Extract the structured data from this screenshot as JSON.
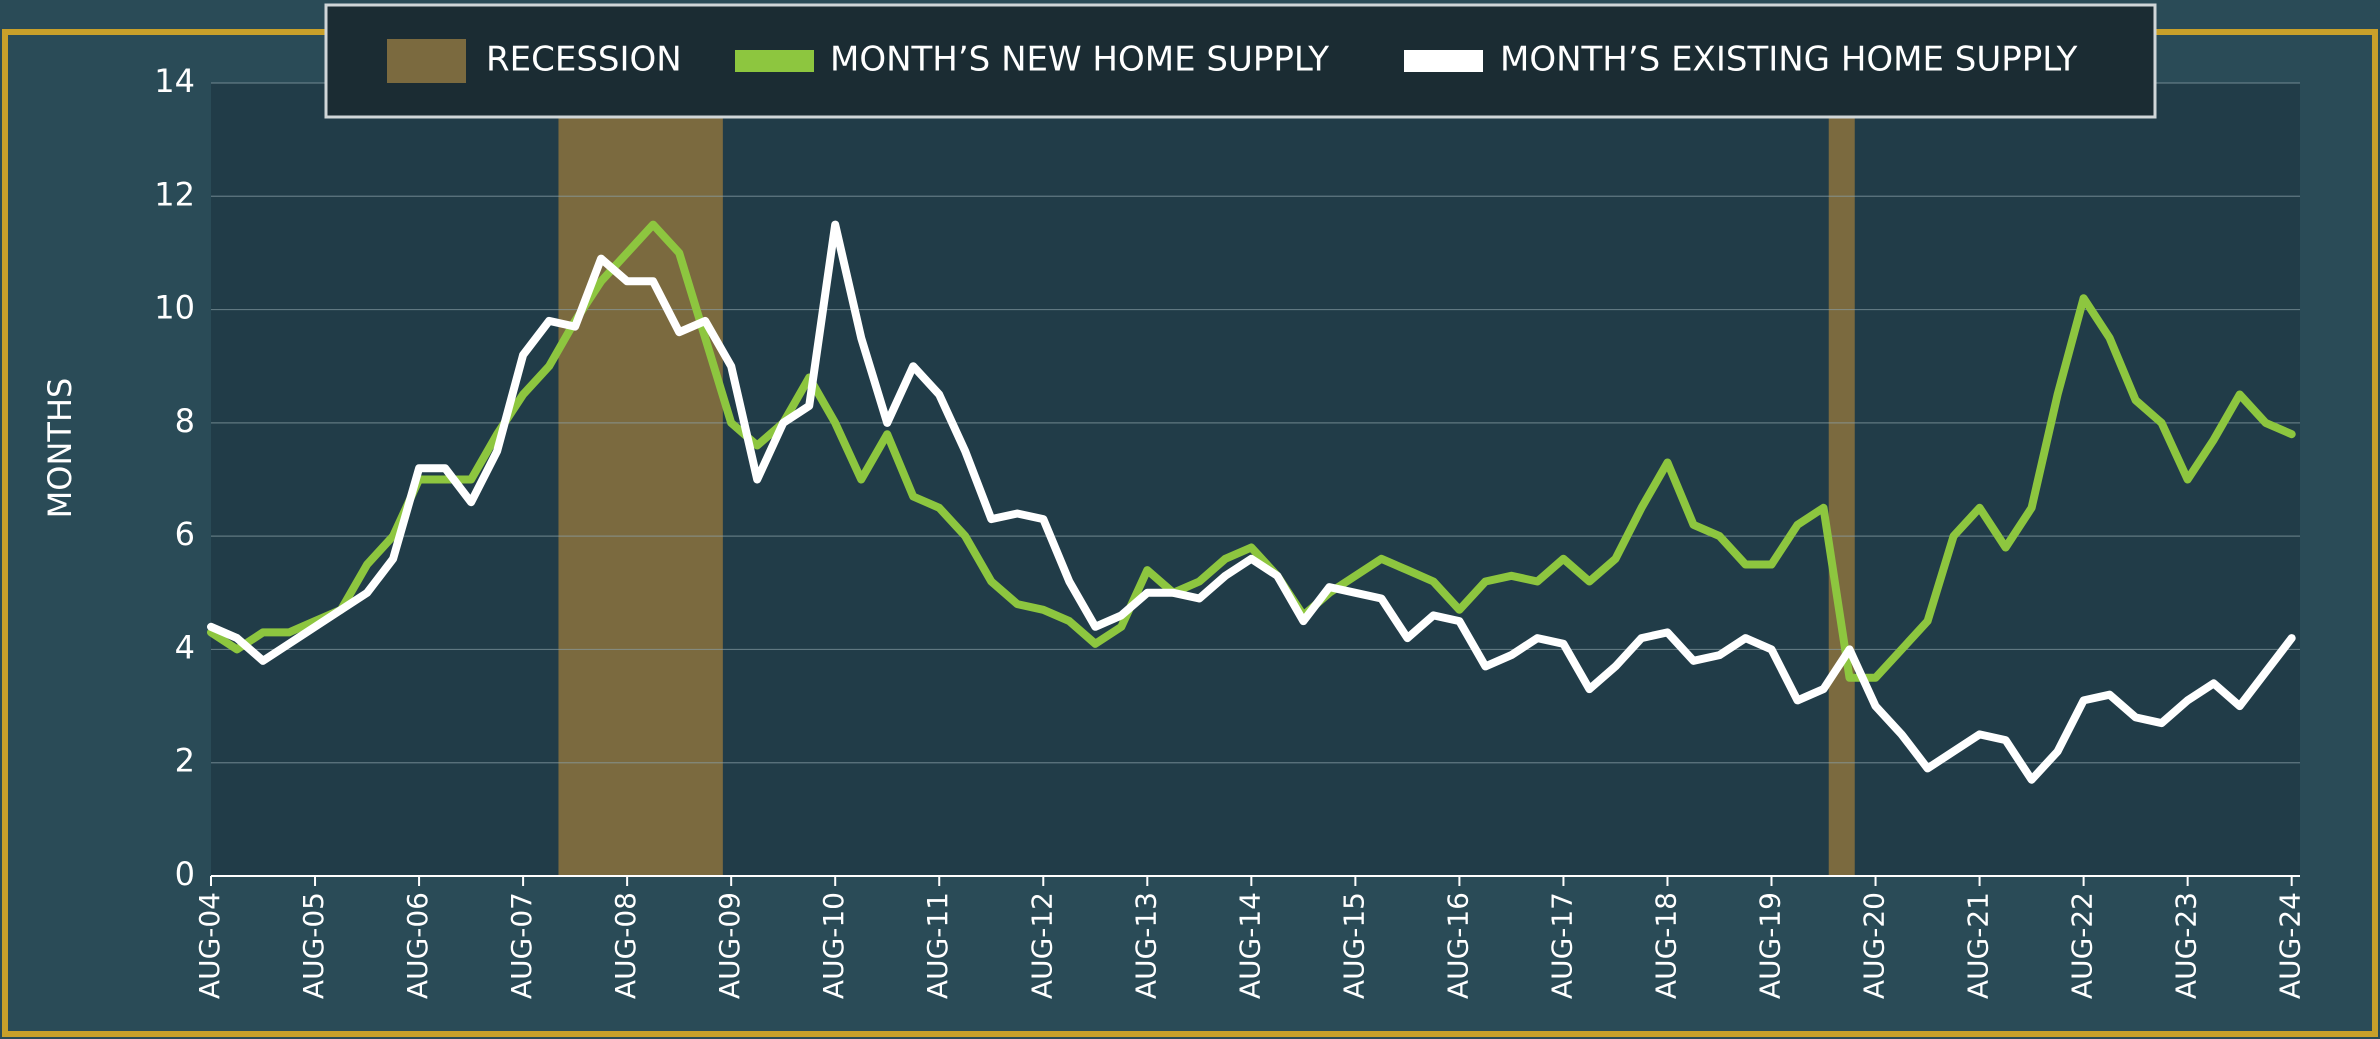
{
  "chart_data": {
    "type": "line",
    "y_label": "MONTHS",
    "recession_name": "RECESSION",
    "recession_color": "#7b6a3f",
    "recessions": [
      [
        2007.92,
        2009.5
      ],
      [
        2020.13,
        2020.38
      ]
    ],
    "x": [
      2004.58,
      2004.83,
      2005.08,
      2005.33,
      2005.58,
      2005.83,
      2006.08,
      2006.33,
      2006.58,
      2006.83,
      2007.08,
      2007.33,
      2007.58,
      2007.83,
      2008.08,
      2008.33,
      2008.58,
      2008.83,
      2009.08,
      2009.33,
      2009.58,
      2009.83,
      2010.08,
      2010.33,
      2010.58,
      2010.83,
      2011.08,
      2011.33,
      2011.58,
      2011.83,
      2012.08,
      2012.33,
      2012.58,
      2012.83,
      2013.08,
      2013.33,
      2013.58,
      2013.83,
      2014.08,
      2014.33,
      2014.58,
      2014.83,
      2015.08,
      2015.33,
      2015.58,
      2015.83,
      2016.08,
      2016.33,
      2016.58,
      2016.83,
      2017.08,
      2017.33,
      2017.58,
      2017.83,
      2018.08,
      2018.33,
      2018.58,
      2018.83,
      2019.08,
      2019.33,
      2019.58,
      2019.83,
      2020.08,
      2020.33,
      2020.58,
      2020.83,
      2021.08,
      2021.33,
      2021.58,
      2021.83,
      2022.08,
      2022.33,
      2022.58,
      2022.83,
      2023.08,
      2023.33,
      2023.58,
      2023.83,
      2024.08,
      2024.33,
      2024.58
    ],
    "series": [
      {
        "name": "MONTH’S NEW HOME SUPPLY",
        "color": "#8dc63f",
        "values": [
          4.3,
          4.0,
          4.3,
          4.3,
          4.5,
          4.7,
          5.5,
          6.0,
          7.0,
          7.0,
          7.0,
          7.8,
          8.5,
          9.0,
          9.8,
          10.5,
          11.0,
          11.5,
          11.0,
          9.5,
          8.0,
          7.6,
          8.0,
          8.8,
          8.0,
          7.0,
          7.8,
          6.7,
          6.5,
          6.0,
          5.2,
          4.8,
          4.7,
          4.5,
          4.1,
          4.4,
          5.4,
          5.0,
          5.2,
          5.6,
          5.8,
          5.3,
          4.6,
          5.0,
          5.3,
          5.6,
          5.4,
          5.2,
          4.7,
          5.2,
          5.3,
          5.2,
          5.6,
          5.2,
          5.6,
          6.5,
          7.3,
          6.2,
          6.0,
          5.5,
          5.5,
          6.2,
          6.5,
          3.5,
          3.5,
          4.0,
          4.5,
          6.0,
          6.5,
          5.8,
          6.5,
          8.5,
          10.2,
          9.5,
          8.4,
          8.0,
          7.0,
          7.7,
          8.5,
          8.0,
          7.8
        ]
      },
      {
        "name": "MONTH’S EXISTING HOME SUPPLY",
        "color": "#ffffff",
        "values": [
          4.4,
          4.2,
          3.8,
          4.1,
          4.4,
          4.7,
          5.0,
          5.6,
          7.2,
          7.2,
          6.6,
          7.5,
          9.2,
          9.8,
          9.7,
          10.9,
          10.5,
          10.5,
          9.6,
          9.8,
          9.0,
          7.0,
          8.0,
          8.3,
          11.5,
          9.5,
          8.0,
          9.0,
          8.5,
          7.5,
          6.3,
          6.4,
          6.3,
          5.2,
          4.4,
          4.6,
          5.0,
          5.0,
          4.9,
          5.3,
          5.6,
          5.3,
          4.5,
          5.1,
          5.0,
          4.9,
          4.2,
          4.6,
          4.5,
          3.7,
          3.9,
          4.2,
          4.1,
          3.3,
          3.7,
          4.2,
          4.3,
          3.8,
          3.9,
          4.2,
          4.0,
          3.1,
          3.3,
          4.0,
          3.0,
          2.5,
          1.9,
          2.2,
          2.5,
          2.4,
          1.7,
          2.2,
          3.1,
          3.2,
          2.8,
          2.7,
          3.1,
          3.4,
          3.0,
          3.6,
          4.2
        ]
      }
    ],
    "xlim": [
      2004.58,
      2024.66
    ],
    "xticks": [
      {
        "value": 2004.58,
        "label": "AUG-04"
      },
      {
        "value": 2005.58,
        "label": "AUG-05"
      },
      {
        "value": 2006.58,
        "label": "AUG-06"
      },
      {
        "value": 2007.58,
        "label": "AUG-07"
      },
      {
        "value": 2008.58,
        "label": "AUG-08"
      },
      {
        "value": 2009.58,
        "label": "AUG-09"
      },
      {
        "value": 2010.58,
        "label": "AUG-10"
      },
      {
        "value": 2011.58,
        "label": "AUG-11"
      },
      {
        "value": 2012.58,
        "label": "AUG-12"
      },
      {
        "value": 2013.58,
        "label": "AUG-13"
      },
      {
        "value": 2014.58,
        "label": "AUG-14"
      },
      {
        "value": 2015.58,
        "label": "AUG-15"
      },
      {
        "value": 2016.58,
        "label": "AUG-16"
      },
      {
        "value": 2017.58,
        "label": "AUG-17"
      },
      {
        "value": 2018.58,
        "label": "AUG-18"
      },
      {
        "value": 2019.58,
        "label": "AUG-19"
      },
      {
        "value": 2020.58,
        "label": "AUG-20"
      },
      {
        "value": 2021.58,
        "label": "AUG-21"
      },
      {
        "value": 2022.58,
        "label": "AUG-22"
      },
      {
        "value": 2023.58,
        "label": "AUG-23"
      },
      {
        "value": 2024.58,
        "label": "AUG-24"
      }
    ],
    "ylim": [
      0,
      14
    ],
    "yticks": [
      0,
      2,
      4,
      6,
      8,
      10,
      12,
      14
    ],
    "grid": true
  }
}
